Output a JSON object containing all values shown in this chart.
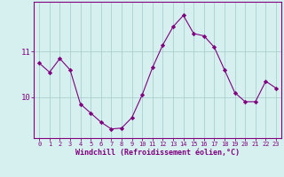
{
  "x": [
    0,
    1,
    2,
    3,
    4,
    5,
    6,
    7,
    8,
    9,
    10,
    11,
    12,
    13,
    14,
    15,
    16,
    17,
    18,
    19,
    20,
    21,
    22,
    23
  ],
  "y": [
    10.75,
    10.55,
    10.85,
    10.6,
    9.85,
    9.65,
    9.45,
    9.3,
    9.32,
    9.55,
    10.05,
    10.65,
    11.15,
    11.55,
    11.8,
    11.4,
    11.35,
    11.1,
    10.6,
    10.1,
    9.9,
    9.9,
    10.35,
    10.2
  ],
  "line_color": "#800080",
  "marker": "D",
  "marker_size": 2.2,
  "bg_color": "#d6f0ef",
  "grid_color": "#aacfcf",
  "spine_color": "#800080",
  "tick_color": "#800080",
  "xlabel": "Windchill (Refroidissement éolien,°C)",
  "xlabel_color": "#800080",
  "ylabel_ticks": [
    10,
    11
  ],
  "ylim": [
    9.1,
    12.1
  ],
  "xlim": [
    -0.5,
    23.5
  ],
  "xtick_fontsize": 5.0,
  "ytick_fontsize": 6.5,
  "xlabel_fontsize": 6.0
}
